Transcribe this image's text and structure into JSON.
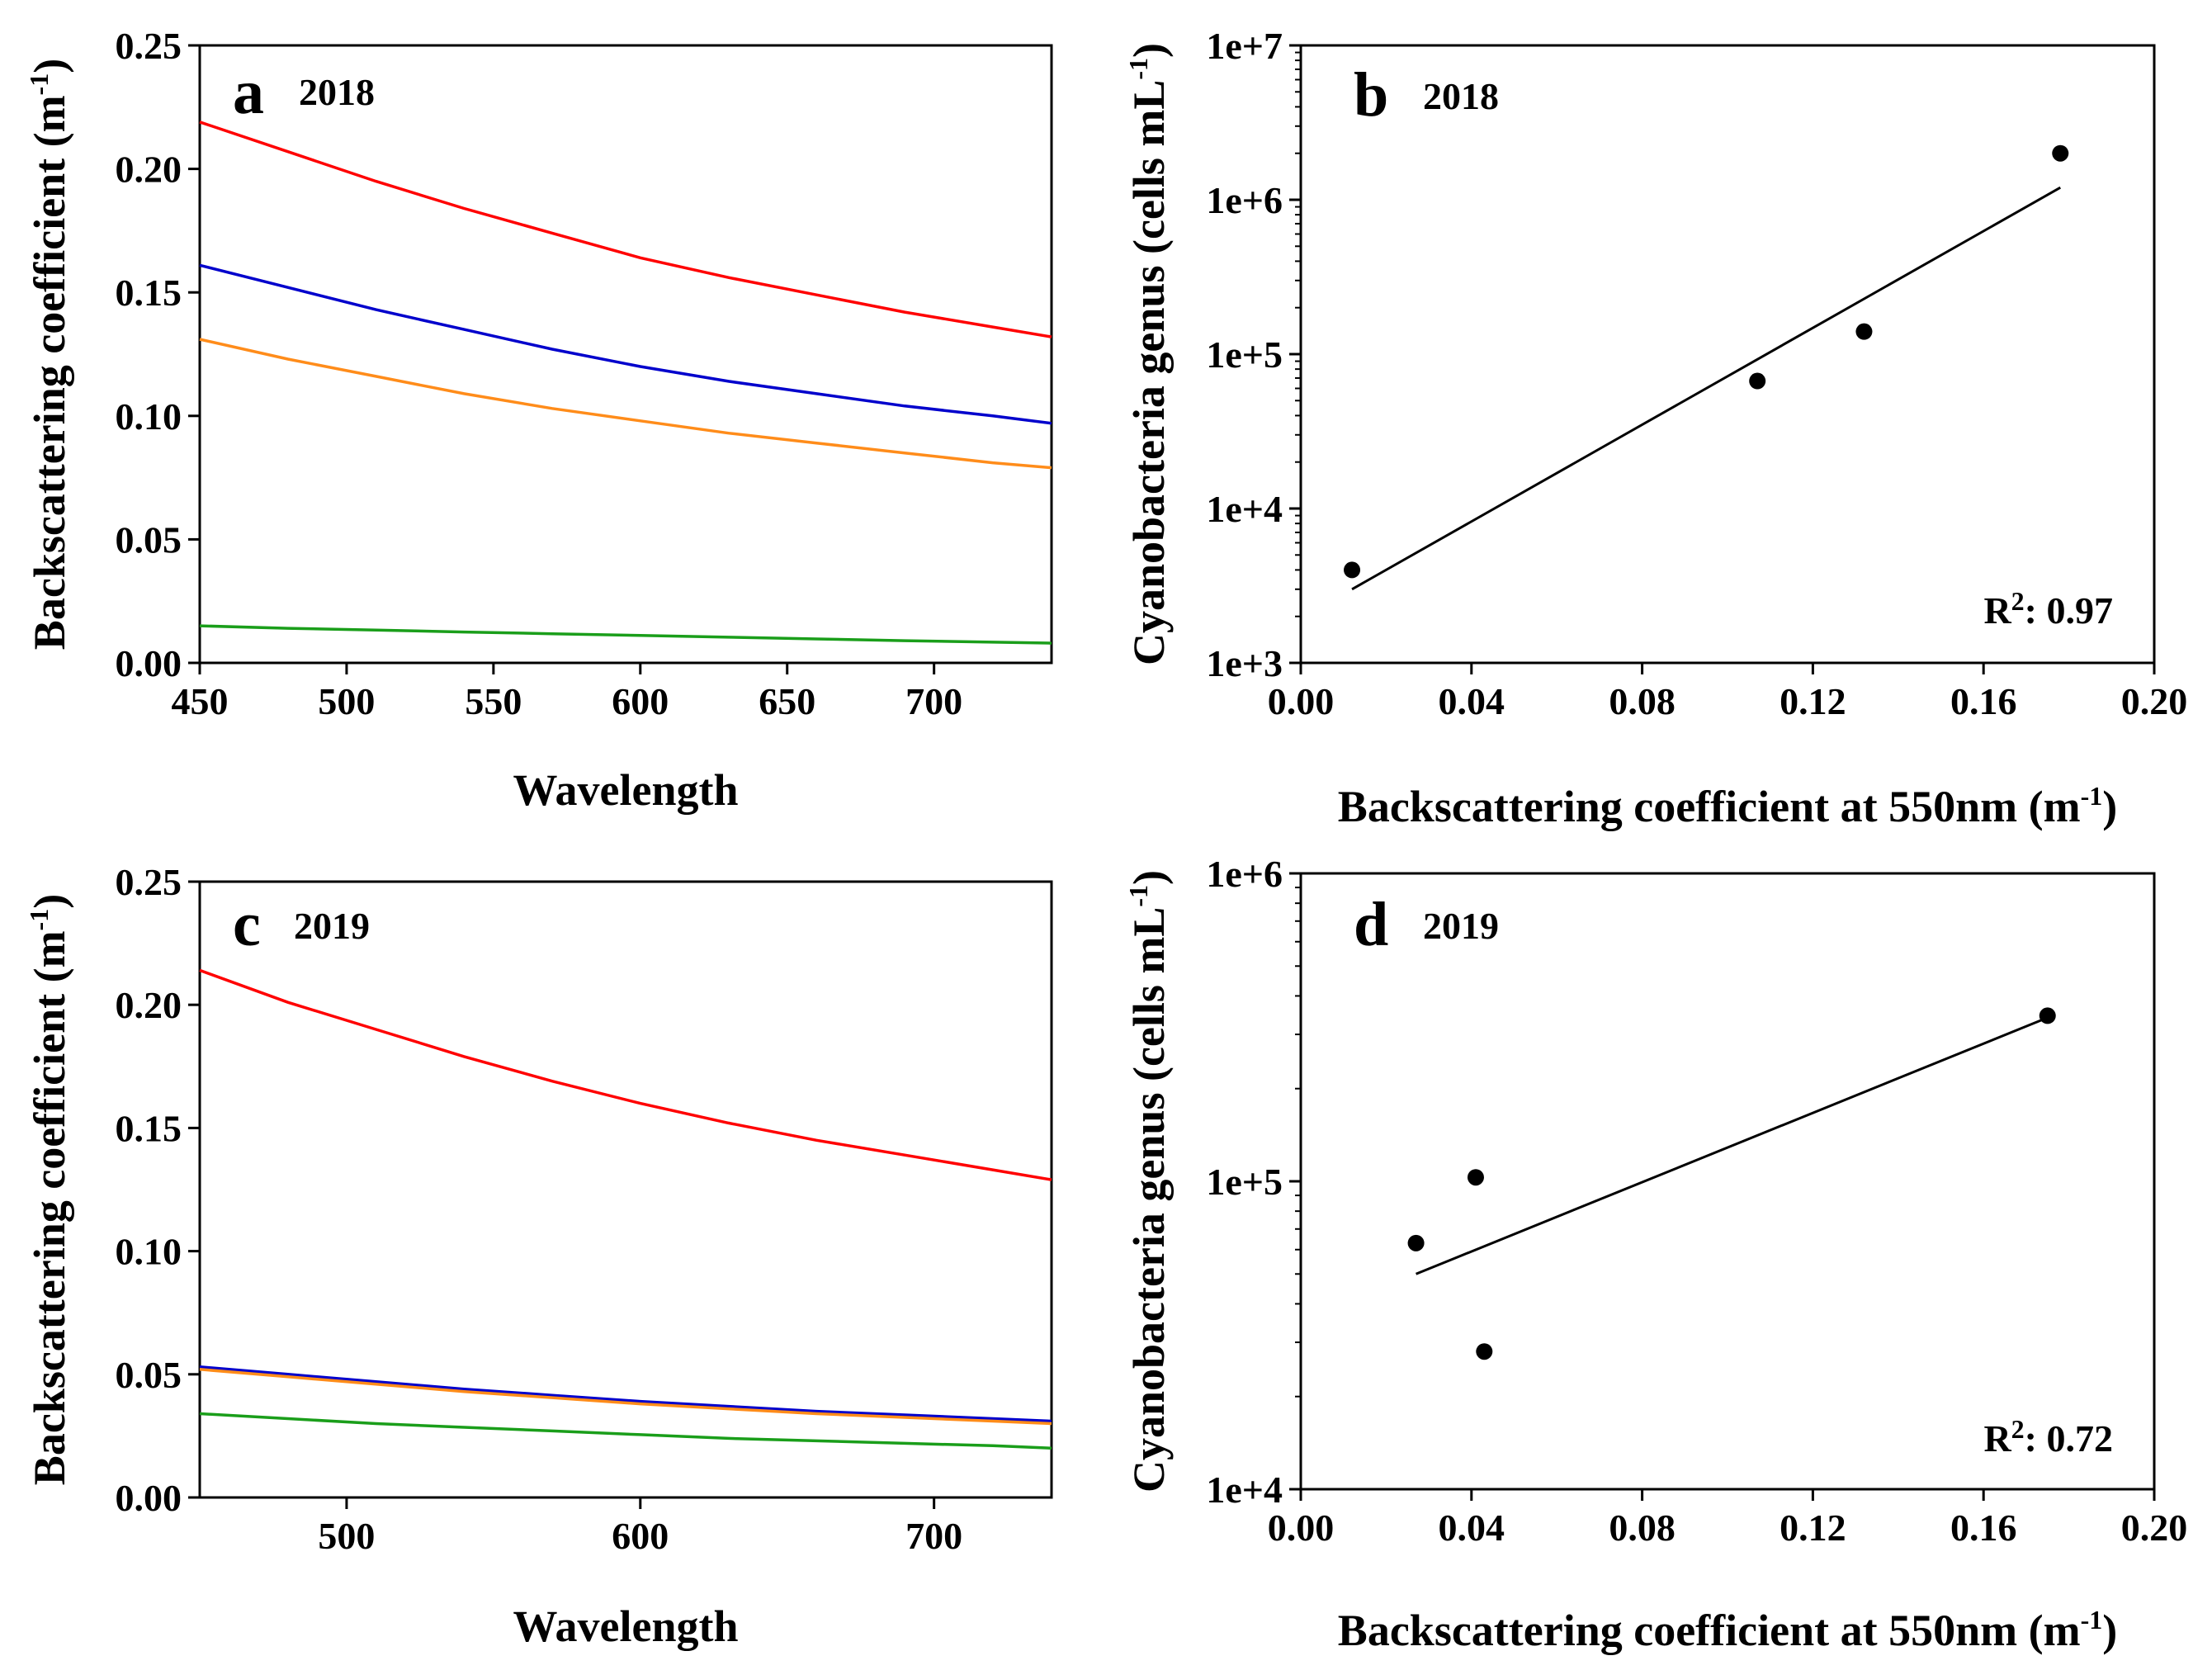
{
  "chart_data": [
    {
      "type": "line",
      "panel_label": "a",
      "year_label": "2018",
      "xlabel": "Wavelength",
      "ylabel": "Backscattering coefficient (m",
      "ylabel_sup": "-1",
      "ylabel_end": ")",
      "xlim": [
        450,
        740
      ],
      "ylim": [
        0,
        0.25
      ],
      "xticks": [
        450,
        500,
        550,
        600,
        650,
        700
      ],
      "xtick_labels": [
        "450",
        "500",
        "550",
        "600",
        "650",
        "700"
      ],
      "yticks": [
        0,
        0.05,
        0.1,
        0.15,
        0.2,
        0.25
      ],
      "ytick_labels": [
        "0.00",
        "0.05",
        "0.10",
        "0.15",
        "0.20",
        "0.25"
      ],
      "x": [
        450,
        480,
        510,
        540,
        570,
        600,
        630,
        660,
        690,
        720,
        740
      ],
      "series": [
        {
          "name": "red",
          "color": "#ff0000",
          "values": [
            0.219,
            0.207,
            0.195,
            0.184,
            0.174,
            0.164,
            0.156,
            0.149,
            0.142,
            0.136,
            0.132
          ]
        },
        {
          "name": "blue",
          "color": "#0000cc",
          "values": [
            0.161,
            0.152,
            0.143,
            0.135,
            0.127,
            0.12,
            0.114,
            0.109,
            0.104,
            0.1,
            0.097
          ]
        },
        {
          "name": "orange",
          "color": "#ff8c1a",
          "values": [
            0.131,
            0.123,
            0.116,
            0.109,
            0.103,
            0.098,
            0.093,
            0.089,
            0.085,
            0.081,
            0.079
          ]
        },
        {
          "name": "green",
          "color": "#1a9e1a",
          "values": [
            0.015,
            0.014,
            0.0133,
            0.0125,
            0.0118,
            0.0111,
            0.0104,
            0.0097,
            0.009,
            0.0084,
            0.008
          ]
        }
      ]
    },
    {
      "type": "scatter",
      "panel_label": "b",
      "year_label": "2018",
      "xlabel": "Backscattering coefficient at 550nm (m",
      "xlabel_sup": "-1",
      "xlabel_end": ")",
      "ylabel": "Cyanobacteria genus (cells mL",
      "ylabel_sup": "-1",
      "ylabel_end": ")",
      "yscale": "log",
      "xlim": [
        0,
        0.2
      ],
      "ylim": [
        1000,
        10000000
      ],
      "xticks": [
        0,
        0.04,
        0.08,
        0.12,
        0.16,
        0.2
      ],
      "xtick_labels": [
        "0.00",
        "0.04",
        "0.08",
        "0.12",
        "0.16",
        "0.20"
      ],
      "yticks": [
        1000,
        10000,
        100000,
        1000000,
        10000000
      ],
      "ytick_labels": [
        "1e+3",
        "1e+4",
        "1e+5",
        "1e+6",
        "1e+7"
      ],
      "points": [
        {
          "x": 0.012,
          "y": 4000
        },
        {
          "x": 0.107,
          "y": 67000
        },
        {
          "x": 0.132,
          "y": 140000
        },
        {
          "x": 0.178,
          "y": 2000000
        }
      ],
      "fit": {
        "x": [
          0.012,
          0.178
        ],
        "y": [
          3000,
          1200000
        ]
      },
      "r2_label": "R",
      "r2_sup": "2",
      "r2_value": ": 0.97"
    },
    {
      "type": "line",
      "panel_label": "c",
      "year_label": "2019",
      "xlabel": "Wavelength",
      "ylabel": "Backscattering coefficient (m",
      "ylabel_sup": "-1",
      "ylabel_end": ")",
      "xlim": [
        450,
        740
      ],
      "ylim": [
        0,
        0.25
      ],
      "xticks": [
        500,
        600,
        700
      ],
      "xtick_labels": [
        "500",
        "600",
        "700"
      ],
      "yticks": [
        0,
        0.05,
        0.1,
        0.15,
        0.2,
        0.25
      ],
      "ytick_labels": [
        "0.00",
        "0.05",
        "0.10",
        "0.15",
        "0.20",
        "0.25"
      ],
      "x": [
        450,
        480,
        510,
        540,
        570,
        600,
        630,
        660,
        690,
        720,
        740
      ],
      "series": [
        {
          "name": "red",
          "color": "#ff0000",
          "values": [
            0.214,
            0.201,
            0.19,
            0.179,
            0.169,
            0.16,
            0.152,
            0.145,
            0.139,
            0.133,
            0.129
          ]
        },
        {
          "name": "blue",
          "color": "#0000cc",
          "values": [
            0.053,
            0.05,
            0.047,
            0.044,
            0.0415,
            0.039,
            0.037,
            0.035,
            0.0335,
            0.032,
            0.031
          ]
        },
        {
          "name": "orange",
          "color": "#ff8c1a",
          "values": [
            0.052,
            0.049,
            0.046,
            0.043,
            0.0405,
            0.038,
            0.036,
            0.034,
            0.0325,
            0.031,
            0.03
          ]
        },
        {
          "name": "green",
          "color": "#1a9e1a",
          "values": [
            0.034,
            0.032,
            0.03,
            0.0285,
            0.027,
            0.0255,
            0.024,
            0.023,
            0.022,
            0.021,
            0.02
          ]
        }
      ]
    },
    {
      "type": "scatter",
      "panel_label": "d",
      "year_label": "2019",
      "xlabel": "Backscattering coefficient at 550nm (m",
      "xlabel_sup": "-1",
      "xlabel_end": ")",
      "ylabel": "Cyanobacteria genus (cells mL",
      "ylabel_sup": "-1",
      "ylabel_end": ")",
      "yscale": "log",
      "xlim": [
        0,
        0.2
      ],
      "ylim": [
        10000,
        1000000
      ],
      "xticks": [
        0,
        0.04,
        0.08,
        0.12,
        0.16,
        0.2
      ],
      "xtick_labels": [
        "0.00",
        "0.04",
        "0.08",
        "0.12",
        "0.16",
        "0.20"
      ],
      "yticks": [
        10000,
        100000,
        1000000
      ],
      "ytick_labels": [
        "1e+4",
        "1e+5",
        "1e+6"
      ],
      "points": [
        {
          "x": 0.027,
          "y": 63000
        },
        {
          "x": 0.041,
          "y": 103000
        },
        {
          "x": 0.043,
          "y": 28000
        },
        {
          "x": 0.175,
          "y": 345000
        }
      ],
      "fit": {
        "x": [
          0.027,
          0.175
        ],
        "y": [
          50000,
          340000
        ]
      },
      "r2_label": "R",
      "r2_sup": "2",
      "r2_value": ": 0.72"
    }
  ]
}
